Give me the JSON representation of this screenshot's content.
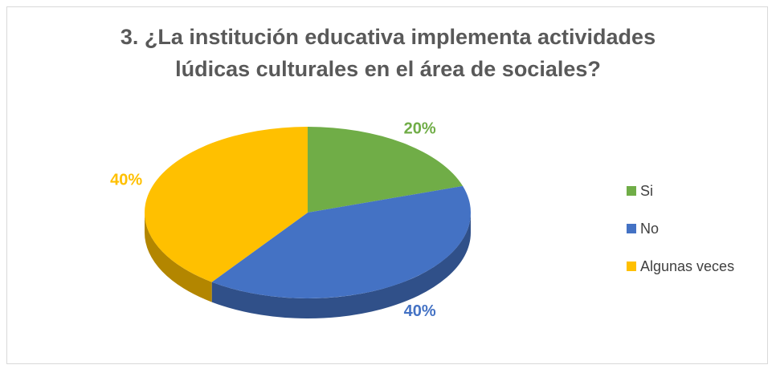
{
  "chart_data": {
    "type": "pie",
    "title": "3. ¿La institución educativa implementa actividades lúdicas culturales en el área de sociales?",
    "categories": [
      "Si",
      "No",
      "Algunas veces"
    ],
    "values": [
      20,
      40,
      40
    ],
    "value_labels": [
      "20%",
      "40%",
      "40%"
    ],
    "colors": [
      "#70ad47",
      "#4472c4",
      "#ffc000"
    ],
    "legend": "right"
  }
}
